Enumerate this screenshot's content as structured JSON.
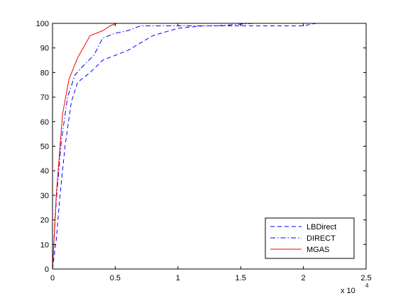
{
  "chart_data": {
    "type": "line",
    "title": "",
    "xlabel": "",
    "ylabel": "",
    "x_multiplier": {
      "base": "x 10",
      "exponent": "4"
    },
    "xlim": [
      0,
      25000
    ],
    "ylim": [
      0,
      100
    ],
    "x_ticks": [
      0,
      5000,
      10000,
      15000,
      20000,
      25000
    ],
    "x_tick_labels": [
      "0",
      "0.5",
      "1",
      "1.5",
      "2",
      "2.5"
    ],
    "y_ticks": [
      0,
      10,
      20,
      30,
      40,
      50,
      60,
      70,
      80,
      90,
      100
    ],
    "y_tick_labels": [
      "0",
      "10",
      "20",
      "30",
      "40",
      "50",
      "60",
      "70",
      "80",
      "90",
      "100"
    ],
    "grid": false,
    "legend_position": "bottom-right",
    "series": [
      {
        "name": "LBDirect",
        "color": "#0000ff",
        "style": "dashed",
        "x": [
          0,
          300,
          600,
          1000,
          1500,
          2000,
          3000,
          4000,
          6000,
          8000,
          10000,
          12000,
          15000,
          18000,
          20000,
          21000
        ],
        "y": [
          0,
          12,
          30,
          50,
          68,
          76,
          80,
          85,
          89,
          95,
          98,
          99,
          99,
          99,
          99,
          100
        ]
      },
      {
        "name": "DIRECT",
        "color": "#0000ff",
        "style": "dashdot",
        "x": [
          0,
          300,
          700,
          1200,
          1800,
          2500,
          3300,
          4000,
          5000,
          6000,
          7000,
          10000,
          13000,
          16000,
          20000,
          21000
        ],
        "y": [
          0,
          28,
          52,
          70,
          79,
          83,
          87,
          94,
          96,
          97,
          99,
          99,
          99,
          100,
          100,
          100
        ]
      },
      {
        "name": "MGAS",
        "color": "#ff0000",
        "style": "solid",
        "x": [
          0,
          300,
          800,
          1300,
          2000,
          3000,
          4000,
          4600,
          5100
        ],
        "y": [
          0,
          30,
          63,
          77,
          86,
          95,
          97,
          99,
          100
        ]
      }
    ]
  }
}
